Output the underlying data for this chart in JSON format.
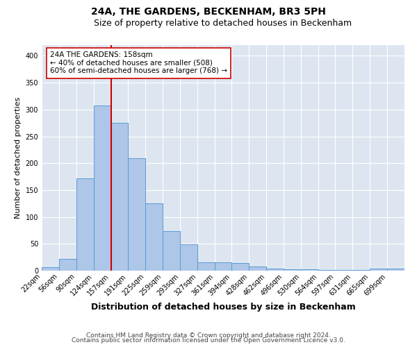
{
  "title": "24A, THE GARDENS, BECKENHAM, BR3 5PH",
  "subtitle": "Size of property relative to detached houses in Beckenham",
  "xlabel": "Distribution of detached houses by size in Beckenham",
  "ylabel": "Number of detached properties",
  "bin_labels": [
    "22sqm",
    "56sqm",
    "90sqm",
    "124sqm",
    "157sqm",
    "191sqm",
    "225sqm",
    "259sqm",
    "293sqm",
    "327sqm",
    "361sqm",
    "394sqm",
    "428sqm",
    "462sqm",
    "496sqm",
    "530sqm",
    "564sqm",
    "597sqm",
    "631sqm",
    "665sqm",
    "699sqm"
  ],
  "bin_edges": [
    22,
    56,
    90,
    124,
    157,
    191,
    225,
    259,
    293,
    327,
    361,
    394,
    428,
    462,
    496,
    530,
    564,
    597,
    631,
    665,
    699,
    733
  ],
  "bar_heights": [
    7,
    22,
    172,
    308,
    275,
    210,
    125,
    74,
    49,
    15,
    15,
    14,
    8,
    4,
    3,
    3,
    1,
    1,
    1,
    4,
    4
  ],
  "bar_color": "#aec6e8",
  "bar_edgecolor": "#5b9bd5",
  "vline_x": 158,
  "vline_color": "#cc0000",
  "annotation_line1": "24A THE GARDENS: 158sqm",
  "annotation_line2": "← 40% of detached houses are smaller (508)",
  "annotation_line3": "60% of semi-detached houses are larger (768) →",
  "annotation_box_edgecolor": "#cc0000",
  "annotation_box_facecolor": "#ffffff",
  "ylim": [
    0,
    420
  ],
  "yticks": [
    0,
    50,
    100,
    150,
    200,
    250,
    300,
    350,
    400
  ],
  "background_color": "#dde6f0",
  "footer_line1": "Contains HM Land Registry data © Crown copyright and database right 2024.",
  "footer_line2": "Contains public sector information licensed under the Open Government Licence v3.0.",
  "title_fontsize": 10,
  "subtitle_fontsize": 9,
  "xlabel_fontsize": 9,
  "ylabel_fontsize": 8,
  "tick_fontsize": 7,
  "footer_fontsize": 6.5,
  "annot_fontsize": 7.5
}
